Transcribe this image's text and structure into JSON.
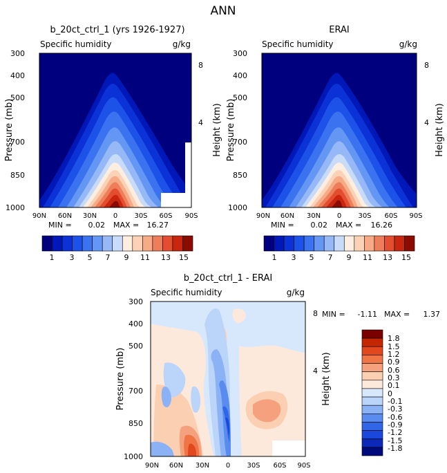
{
  "figure_title": "ANN",
  "min_label": "MIN =",
  "max_label": "MAX =",
  "colors": {
    "abs_scale": [
      "#00007f",
      "#0018b8",
      "#0a32d6",
      "#1d52e8",
      "#3a72f0",
      "#6496f4",
      "#96b8f6",
      "#c8dcfa",
      "#fdeee0",
      "#fbd2b6",
      "#f6aa86",
      "#ee7e5a",
      "#e34e30",
      "#c8260f",
      "#8a0b00"
    ],
    "diff_scale": [
      "#000a7a",
      "#0c28b6",
      "#1a48dc",
      "#3266e8",
      "#5a8cf0",
      "#8cb2f6",
      "#bad4fa",
      "#d8e8fc",
      "#fde9dc",
      "#fbcfb2",
      "#f5a17e",
      "#ef7546",
      "#e2481e",
      "#c42600",
      "#7a0000"
    ]
  },
  "chart_data": [
    {
      "type": "heatmap",
      "title": "b_20ct_ctrl_1 (yrs 1926-1927)",
      "subtitle": "Specific humidity",
      "units": "g/kg",
      "ylabel": "Pressure (mb)",
      "ylabel_right": "Height (km)",
      "x_ticks": [
        "90N",
        "60N",
        "30N",
        "0",
        "30S",
        "60S",
        "90S"
      ],
      "y_ticks": [
        "300",
        "400",
        "500",
        "700",
        "850",
        "1000"
      ],
      "y2_ticks": [
        "8",
        "4"
      ],
      "min": "0.02",
      "max": "16.27"
    },
    {
      "type": "heatmap",
      "title": "ERAI",
      "subtitle": "Specific humidity",
      "units": "g/kg",
      "ylabel": "Pressure (mb)",
      "ylabel_right": "Height (km)",
      "x_ticks": [
        "90N",
        "60N",
        "30N",
        "0",
        "30S",
        "60S",
        "90S"
      ],
      "y_ticks": [
        "300",
        "400",
        "500",
        "700",
        "850",
        "1000"
      ],
      "y2_ticks": [
        "8",
        "4"
      ],
      "min": "0.02",
      "max": "16.26"
    },
    {
      "type": "heatmap",
      "title": "b_20ct_ctrl_1 - ERAI",
      "subtitle": "Specific humidity",
      "units": "g/kg",
      "ylabel": "Pressure (mb)",
      "ylabel_right": "Height (km)",
      "x_ticks": [
        "90N",
        "60N",
        "30N",
        "0",
        "30S",
        "60S",
        "90S"
      ],
      "y_ticks": [
        "300",
        "400",
        "500",
        "700",
        "850",
        "1000"
      ],
      "y2_ticks": [
        "8",
        "4"
      ],
      "min": "-1.11",
      "max": "1.37"
    }
  ],
  "colorbar_abs": {
    "labels": [
      "1",
      "3",
      "5",
      "7",
      "9",
      "11",
      "13",
      "15"
    ]
  },
  "colorbar_diff": {
    "labels": [
      "1.8",
      "1.5",
      "1.2",
      "0.9",
      "0.6",
      "0.3",
      "0.1",
      "0",
      "-0.1",
      "-0.3",
      "-0.6",
      "-0.9",
      "-1.2",
      "-1.5",
      "-1.8"
    ]
  }
}
